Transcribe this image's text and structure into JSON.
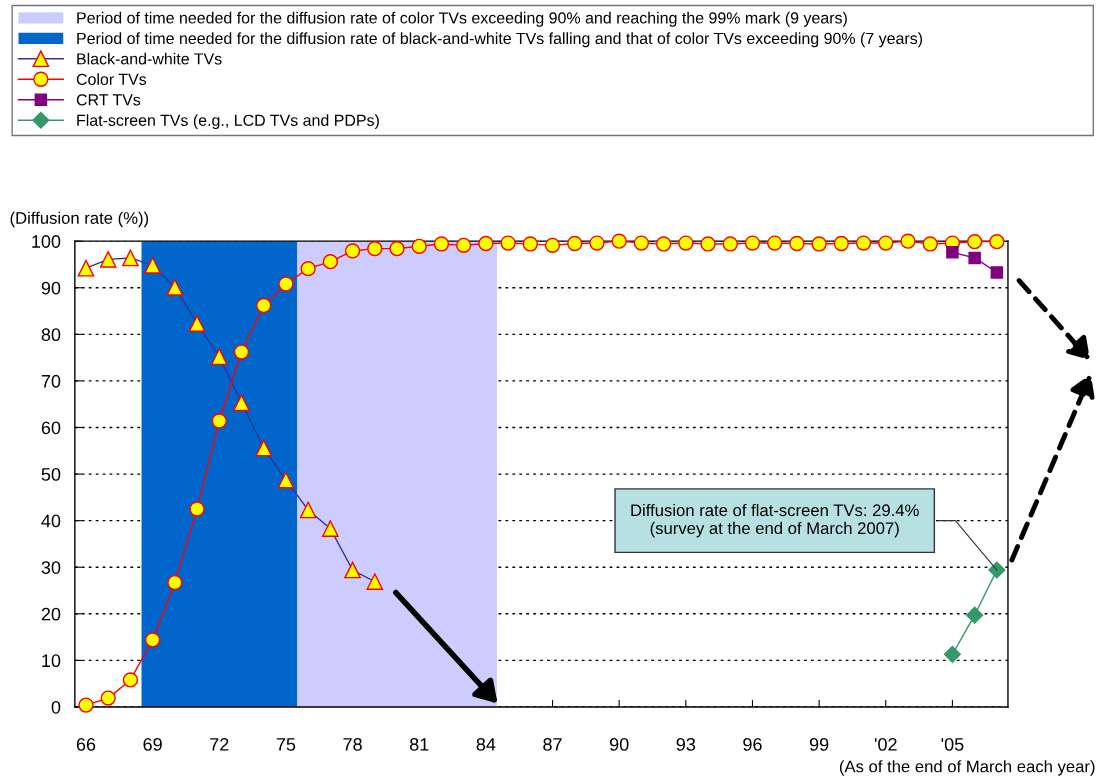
{
  "chart_data": {
    "type": "line",
    "ylabel": "(Diffusion rate (%))",
    "xlabel": "(As of the end of March each year)",
    "xlim": [
      1965.5,
      2007.5
    ],
    "xticks": [
      {
        "value": 1966,
        "label": "66"
      },
      {
        "value": 1969,
        "label": "69"
      },
      {
        "value": 1972,
        "label": "72"
      },
      {
        "value": 1975,
        "label": "75"
      },
      {
        "value": 1978,
        "label": "78"
      },
      {
        "value": 1981,
        "label": "81"
      },
      {
        "value": 1984,
        "label": "84"
      },
      {
        "value": 1987,
        "label": "87"
      },
      {
        "value": 1990,
        "label": "90"
      },
      {
        "value": 1993,
        "label": "93"
      },
      {
        "value": 1996,
        "label": "96"
      },
      {
        "value": 1999,
        "label": "99"
      },
      {
        "value": 2002,
        "label": "'02"
      },
      {
        "value": 2005,
        "label": "'05"
      }
    ],
    "ylim": [
      0,
      100
    ],
    "yticks": [
      0,
      10,
      20,
      30,
      40,
      50,
      60,
      70,
      80,
      90,
      100
    ],
    "grid": "y",
    "legend": "top",
    "bands": [
      {
        "axis": "x",
        "from": 1975.5,
        "to": 1984.5,
        "label": "Period of time needed for the diffusion rate of color TVs exceeding 90% and reaching the 99% mark (9 years)",
        "color": "#ccccff"
      },
      {
        "axis": "x",
        "from": 1968.5,
        "to": 1975.5,
        "label": "Period of time needed for the diffusion rate of black-and-white TVs falling and that of color TVs exceeding 90% (7 years)",
        "color": "#0066cc"
      }
    ],
    "series": [
      {
        "name": "Black-and-white TVs",
        "color": "#333399",
        "marker": "triangle",
        "x": [
          1966,
          1967,
          1968,
          1969,
          1970,
          1971,
          1972,
          1973,
          1974,
          1975,
          1976,
          1977,
          1978,
          1979
        ],
        "values": [
          94.2,
          96.1,
          96.4,
          94.8,
          90.1,
          82.3,
          75.2,
          65.3,
          55.6,
          48.7,
          42.3,
          38.3,
          29.4,
          26.9
        ]
      },
      {
        "name": "Color TVs",
        "color": "#ff0000",
        "marker": "circle",
        "x": [
          1966,
          1967,
          1968,
          1969,
          1970,
          1971,
          1972,
          1973,
          1974,
          1975,
          1976,
          1977,
          1978,
          1979,
          1980,
          1981,
          1982,
          1983,
          1984,
          1985,
          1986,
          1987,
          1988,
          1989,
          1990,
          1991,
          1992,
          1993,
          1994,
          1995,
          1996,
          1997,
          1998,
          1999,
          2000,
          2001,
          2002,
          2003,
          2004,
          2005,
          2006,
          2007
        ],
        "values": [
          0.4,
          1.9,
          5.8,
          14.4,
          26.7,
          42.5,
          61.4,
          76.2,
          86.2,
          90.8,
          94.1,
          95.6,
          97.9,
          98.4,
          98.4,
          98.9,
          99.4,
          99.1,
          99.5,
          99.6,
          99.4,
          99.1,
          99.5,
          99.6,
          100.0,
          99.6,
          99.4,
          99.6,
          99.4,
          99.4,
          99.6,
          99.6,
          99.5,
          99.4,
          99.5,
          99.6,
          99.6,
          100.0,
          99.4,
          99.6,
          99.9,
          99.9
        ]
      },
      {
        "name": "CRT TVs",
        "color": "#800080",
        "marker": "square",
        "x": [
          2005,
          2006,
          2007
        ],
        "values": [
          97.6,
          96.4,
          93.3
        ]
      },
      {
        "name": "Flat-screen TVs (e.g., LCD TVs and PDPs)",
        "color": "#339966",
        "marker": "diamond",
        "x": [
          2005,
          2006,
          2007
        ],
        "values": [
          11.3,
          19.7,
          29.4
        ]
      }
    ],
    "annotations": [
      {
        "text": "Diffusion rate of flat-screen TVs: 29.4%\n(survey at the end of March 2007)",
        "x": 2007,
        "y": 29.4
      }
    ]
  }
}
